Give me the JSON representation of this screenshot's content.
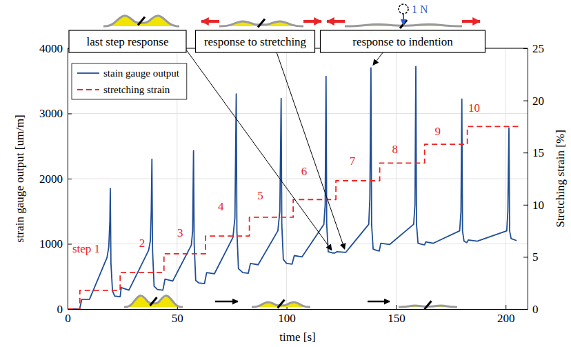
{
  "chart_data": {
    "type": "line",
    "xlabel": "time [s]",
    "ylabel": "strain gauge output [um/m]",
    "y2label": "Stretching strain [%]",
    "xlim": [
      0,
      210
    ],
    "xticks": [
      0,
      50,
      100,
      150,
      200
    ],
    "ylim": [
      0,
      4000
    ],
    "yticks": [
      0,
      1000,
      2000,
      3000,
      4000
    ],
    "y2lim": [
      0,
      25
    ],
    "y2ticks": [
      0,
      5,
      10,
      15,
      20,
      25
    ],
    "grid": true,
    "legend": "upper left",
    "series": [
      {
        "name": "stain gauge output",
        "color": "#1f4e96",
        "line_style": "solid",
        "x": [
          0,
          5.5,
          6.5,
          10,
          18,
          18.8,
          19.3,
          19.5,
          19.8,
          20.5,
          21.5,
          24,
          24.5,
          28,
          37,
          37.8,
          38.2,
          38.5,
          38.8,
          39.5,
          41,
          43.5,
          44.5,
          48,
          56.5,
          57.1,
          57.5,
          57.8,
          58.5,
          60,
          62.5,
          63.5,
          67,
          75.5,
          76.4,
          77,
          77.3,
          78,
          80,
          82.5,
          83.5,
          87,
          96,
          96.9,
          97.5,
          97.8,
          98.5,
          100,
          102.5,
          103.5,
          107,
          117,
          117.6,
          118,
          118.3,
          119,
          121,
          122,
          123,
          127,
          137.5,
          138,
          138.5,
          138.8,
          139.5,
          141,
          142.3,
          143,
          147,
          158,
          158.6,
          159,
          159.3,
          160,
          162,
          163,
          163.5,
          167,
          179,
          179.6,
          180,
          180.3,
          181,
          182.3,
          183,
          187,
          200.5,
          201,
          201.5,
          201.8,
          202.5,
          205
        ],
        "values": [
          0,
          0,
          150,
          150,
          790,
          950,
          1350,
          1850,
          700,
          280,
          200,
          190,
          330,
          290,
          900,
          1050,
          1500,
          2300,
          900,
          350,
          300,
          290,
          460,
          430,
          980,
          1200,
          2430,
          1000,
          440,
          400,
          390,
          560,
          540,
          1100,
          1400,
          3300,
          1200,
          620,
          560,
          550,
          700,
          680,
          1200,
          1500,
          3230,
          1300,
          760,
          700,
          690,
          820,
          800,
          1300,
          1600,
          3570,
          1300,
          880,
          860,
          860,
          880,
          870,
          1300,
          1700,
          3700,
          1300,
          920,
          900,
          890,
          1010,
          990,
          1300,
          1600,
          3720,
          1300,
          1010,
          990,
          985,
          1030,
          1010,
          1200,
          1500,
          3220,
          1200,
          1040,
          1020,
          1060,
          1040,
          1200,
          1500,
          2780,
          1200,
          1080,
          1050
        ]
      },
      {
        "name": "stretching strain",
        "color": "#ee2424",
        "line_style": "dashed",
        "axis": "y2",
        "x": [
          0,
          5.6,
          5.6,
          24,
          24,
          44,
          44,
          63,
          63,
          83,
          83,
          103,
          103,
          122.5,
          122.5,
          142.5,
          142.5,
          163,
          163,
          182.5,
          182.5,
          206
        ],
        "values": [
          0,
          0,
          1.8,
          1.8,
          3.5,
          3.5,
          5.3,
          5.3,
          7,
          7,
          8.8,
          8.8,
          10.5,
          10.5,
          12.3,
          12.3,
          14,
          14,
          15.8,
          15.8,
          17.5,
          17.5
        ]
      }
    ],
    "annotations": [
      {
        "text": "last step response",
        "x": 121.5,
        "y": 860
      },
      {
        "text": "response to stretching",
        "x": 127,
        "y": 870
      },
      {
        "text": "response to indention",
        "x": 138.5,
        "y": 3700
      }
    ],
    "step_labels": [
      {
        "text": "step 1",
        "x": 8.5,
        "y": 5.8
      },
      {
        "text": "2",
        "x": 34,
        "y": 6.3
      },
      {
        "text": "3",
        "x": 51.4,
        "y": 7.3
      },
      {
        "text": "4",
        "x": 70,
        "y": 9.8
      },
      {
        "text": "5",
        "x": 88,
        "y": 10.9
      },
      {
        "text": "6",
        "x": 108,
        "y": 13.2
      },
      {
        "text": "7",
        "x": 130,
        "y": 14.2
      },
      {
        "text": "8",
        "x": 149.5,
        "y": 15.3
      },
      {
        "text": "9",
        "x": 169,
        "y": 17
      },
      {
        "text": "10",
        "x": 185.6,
        "y": 19.3
      }
    ],
    "force_label": "1 N"
  }
}
